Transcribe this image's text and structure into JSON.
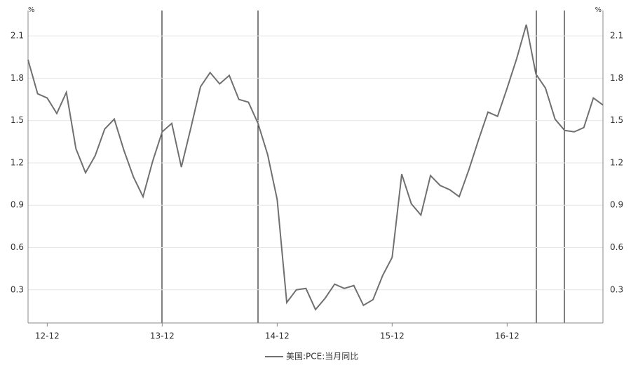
{
  "chart_data": {
    "type": "line",
    "y_unit": "%",
    "categories": [
      null,
      null,
      "12-12",
      null,
      null,
      null,
      null,
      null,
      null,
      null,
      null,
      null,
      null,
      null,
      "13-12",
      null,
      null,
      null,
      null,
      null,
      null,
      null,
      null,
      null,
      null,
      null,
      "14-12",
      null,
      null,
      null,
      null,
      null,
      null,
      null,
      null,
      null,
      null,
      null,
      "15-12",
      null,
      null,
      null,
      null,
      null,
      null,
      null,
      null,
      null,
      null,
      null,
      "16-12",
      null,
      null,
      null,
      null,
      null,
      null,
      null,
      null,
      null,
      null
    ],
    "series": [
      {
        "name": "美国:PCE:当月同比",
        "color": "#707070",
        "values": [
          1.93,
          1.69,
          1.66,
          1.55,
          1.7,
          1.3,
          1.13,
          1.25,
          1.44,
          1.51,
          1.29,
          1.1,
          0.96,
          1.21,
          1.42,
          1.48,
          1.17,
          1.45,
          1.74,
          1.84,
          1.76,
          1.82,
          1.65,
          1.63,
          1.48,
          1.26,
          0.94,
          0.21,
          0.3,
          0.31,
          0.16,
          0.24,
          0.34,
          0.31,
          0.33,
          0.19,
          0.23,
          0.4,
          0.53,
          1.12,
          0.91,
          0.83,
          1.11,
          1.04,
          1.01,
          0.96,
          1.15,
          1.36,
          1.56,
          1.53,
          1.73,
          1.94,
          2.18,
          1.83,
          1.73,
          1.51,
          1.43,
          1.42,
          1.45,
          1.66,
          1.61
        ]
      }
    ],
    "ylim": [
      0.065,
      2.28
    ],
    "yticks": [
      0.3,
      0.6,
      0.9,
      1.2,
      1.5,
      1.8,
      2.1
    ],
    "grid": true
  }
}
